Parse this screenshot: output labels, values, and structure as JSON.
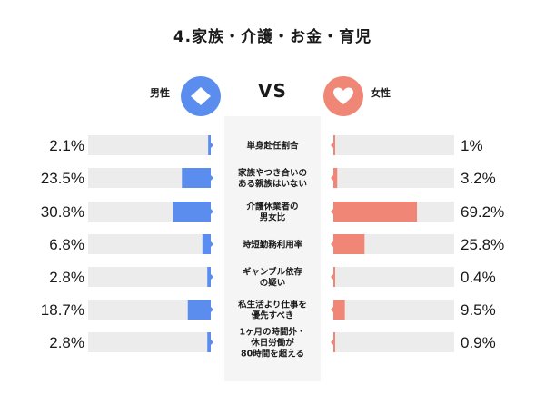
{
  "title": "4.家族・介護・お金・育児",
  "vs_label": "VS",
  "colors": {
    "male": "#5b8def",
    "female": "#ef8676",
    "track": "#ececec",
    "panel": "#f5f5f5"
  },
  "icons": {
    "male": "diamond-icon",
    "female": "heart-icon"
  },
  "chart_data": {
    "type": "bar",
    "layout": "butterfly",
    "categories": [
      [
        "単身赴任割合"
      ],
      [
        "家族やつき合いの",
        "ある親族はいない"
      ],
      [
        "介護休業者の",
        "男女比"
      ],
      [
        "時短勤務利用率"
      ],
      [
        "ギャンブル依存",
        "の疑い"
      ],
      [
        "私生活より仕事を",
        "優先すべき"
      ],
      [
        "1ヶ月の時間外・",
        "休日労働が",
        "80時間を超える"
      ]
    ],
    "series": [
      {
        "name": "男性",
        "values": [
          2.1,
          23.5,
          30.8,
          6.8,
          2.8,
          18.7,
          2.8
        ],
        "labels": [
          "2.1%",
          "23.5%",
          "30.8%",
          "6.8%",
          "2.8%",
          "18.7%",
          "2.8%"
        ]
      },
      {
        "name": "女性",
        "values": [
          1,
          3.2,
          69.2,
          25.8,
          0.4,
          9.5,
          0.9
        ],
        "labels": [
          "1%",
          "3.2%",
          "69.2%",
          "25.8%",
          "0.4%",
          "9.5%",
          "0.9%"
        ]
      }
    ],
    "xlim": [
      0,
      100
    ]
  }
}
